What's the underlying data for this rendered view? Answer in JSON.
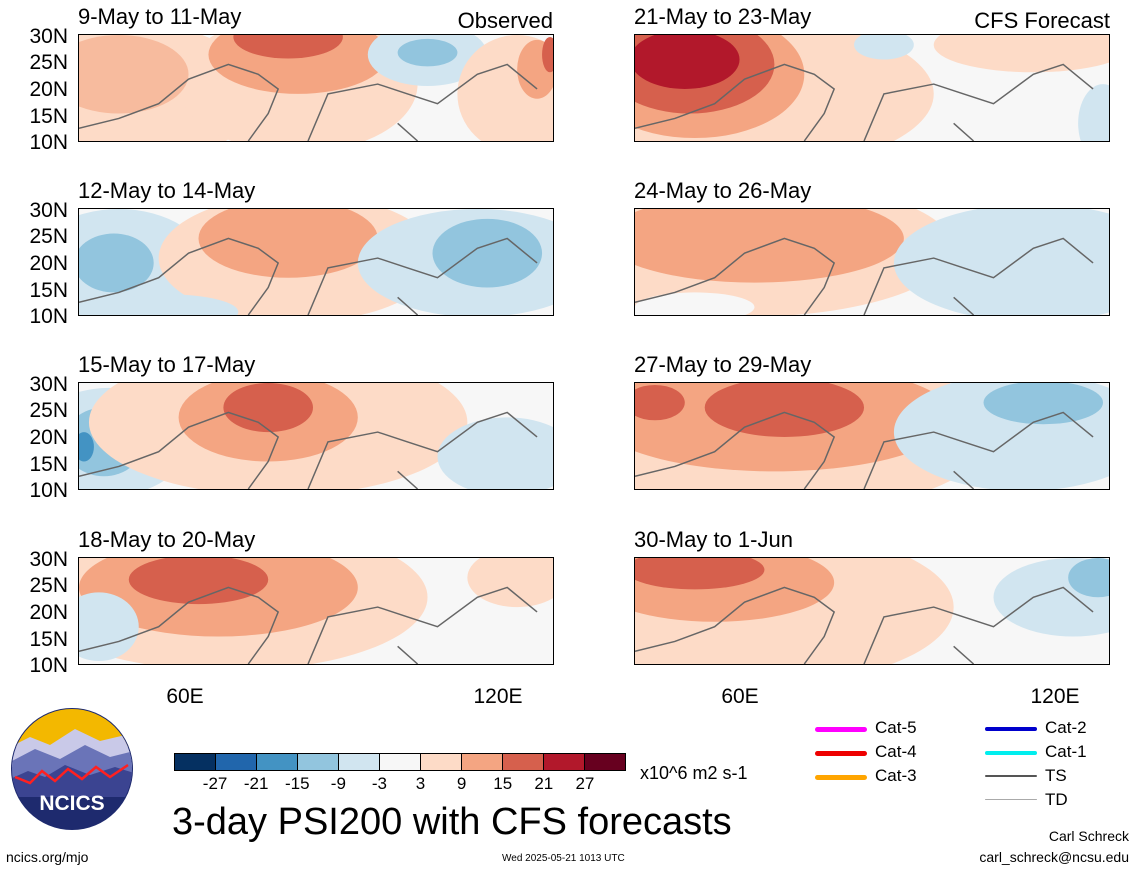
{
  "observed_label": "Observed",
  "forecast_label": "CFS Forecast",
  "lat_labels": [
    "30N",
    "25N",
    "20N",
    "15N",
    "10N"
  ],
  "lon_labels": [
    "60E",
    "120E"
  ],
  "panels_left": [
    {
      "title": "9-May to 11-May"
    },
    {
      "title": "12-May to 14-May"
    },
    {
      "title": "15-May to 17-May"
    },
    {
      "title": "18-May to 20-May"
    }
  ],
  "panels_right": [
    {
      "title": "21-May to 23-May"
    },
    {
      "title": "24-May to 26-May"
    },
    {
      "title": "27-May to 29-May"
    },
    {
      "title": "30-May to 1-Jun"
    }
  ],
  "colorbar": {
    "colors": [
      "#053061",
      "#2166ac",
      "#4393c3",
      "#92c5de",
      "#d1e5f0",
      "#f7f7f7",
      "#fddbc7",
      "#f4a582",
      "#d6604d",
      "#b2182b",
      "#67001f"
    ],
    "ticks": [
      "-27",
      "-21",
      "-15",
      "-9",
      "-3",
      "3",
      "9",
      "15",
      "21",
      "27"
    ],
    "units": "x10^6 m2 s-1"
  },
  "legend": [
    {
      "label": "Cat-5",
      "color": "#ff00ff"
    },
    {
      "label": "Cat-4",
      "color": "#ee0000"
    },
    {
      "label": "Cat-3",
      "color": "#ffa500"
    },
    {
      "label": "Cat-2",
      "color": "#0000cc"
    },
    {
      "label": "Cat-1",
      "color": "#00eeee"
    },
    {
      "label": "TS",
      "color": "#555555"
    },
    {
      "label": "TD",
      "color": "#aaaaaa"
    }
  ],
  "logo_text": "NCICS",
  "main_title": "3-day PSI200 with CFS forecasts",
  "footer_left": "ncics.org/mjo",
  "footer_center": "Wed 2025-05-21 1013 UTC",
  "author_name": "Carl Schreck",
  "author_email": "carl_schreck@ncsu.edu"
}
